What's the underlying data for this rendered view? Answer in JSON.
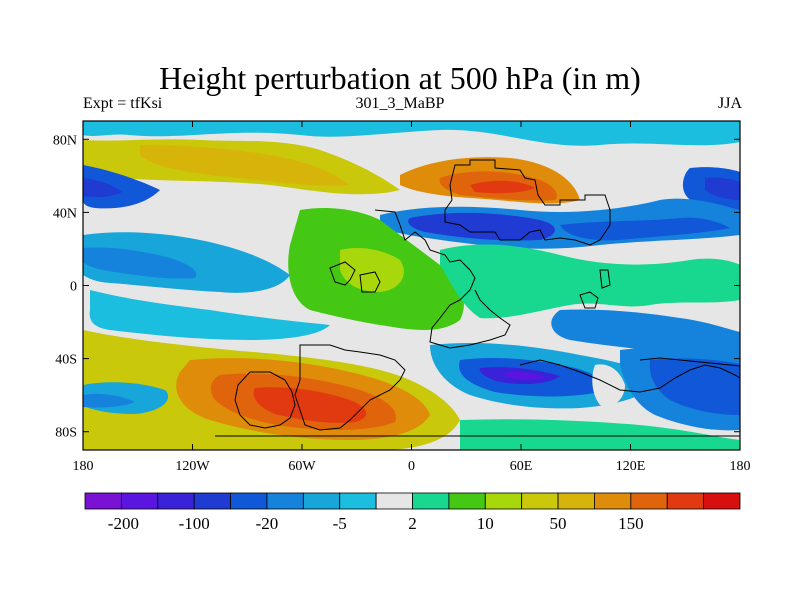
{
  "title": "Height perturbation at 500 hPa (in m)",
  "subtitle_left": "Expt = tfKsi",
  "subtitle_center": "301_3_MaBP",
  "subtitle_right": "JJA",
  "map": {
    "lon_range": [
      -180,
      180
    ],
    "lat_range": [
      -90,
      90
    ],
    "x_ticks": [
      {
        "value": -180,
        "label": "180"
      },
      {
        "value": -120,
        "label": "120W"
      },
      {
        "value": -60,
        "label": "60W"
      },
      {
        "value": 0,
        "label": "0"
      },
      {
        "value": 60,
        "label": "60E"
      },
      {
        "value": 120,
        "label": "120E"
      },
      {
        "value": 180,
        "label": "180"
      }
    ],
    "y_ticks": [
      {
        "value": 80,
        "label": "80N"
      },
      {
        "value": 40,
        "label": "40N"
      },
      {
        "value": 0,
        "label": "0"
      },
      {
        "value": -40,
        "label": "40S"
      },
      {
        "value": -80,
        "label": "80S"
      }
    ]
  },
  "colorbar": {
    "colors": [
      "#7a12d6",
      "#5a16e0",
      "#3a22d8",
      "#1f3bd2",
      "#1058d8",
      "#1583dc",
      "#17a5da",
      "#1cbedf",
      "#e6e6e6",
      "#18d88f",
      "#44c814",
      "#a8d80c",
      "#c9c80a",
      "#d7b40a",
      "#de8c0a",
      "#e0640c",
      "#e23a10",
      "#d80f0f"
    ],
    "labels": [
      "-200",
      "-100",
      "-20",
      "-5",
      "2",
      "10",
      "50",
      "150"
    ]
  }
}
